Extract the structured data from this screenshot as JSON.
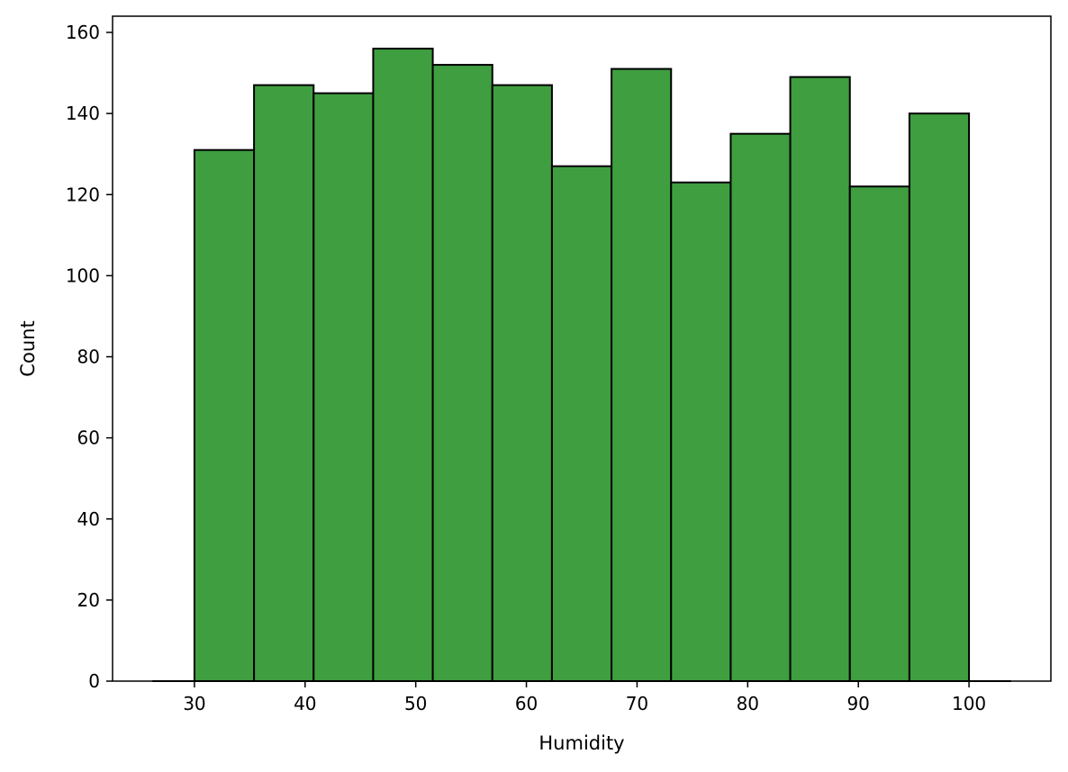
{
  "chart_data": {
    "type": "bar",
    "subtype": "histogram",
    "title": "",
    "xlabel": "Humidity",
    "ylabel": "Count",
    "bin_edges": [
      30.0,
      35.385,
      40.769,
      46.154,
      51.538,
      56.923,
      62.308,
      67.692,
      73.077,
      78.462,
      83.846,
      89.231,
      94.615,
      100.0
    ],
    "values": [
      131,
      147,
      145,
      156,
      152,
      147,
      127,
      151,
      123,
      135,
      149,
      122,
      140
    ],
    "xlim": [
      22.6,
      107.4
    ],
    "ylim": [
      0,
      164
    ],
    "xticks": [
      30,
      40,
      50,
      60,
      70,
      80,
      90,
      100
    ],
    "yticks": [
      0,
      20,
      40,
      60,
      80,
      100,
      120,
      140,
      160
    ],
    "grid": false,
    "legend": "none",
    "bar_color": "#3f9e40",
    "edge_color": "#000000"
  }
}
